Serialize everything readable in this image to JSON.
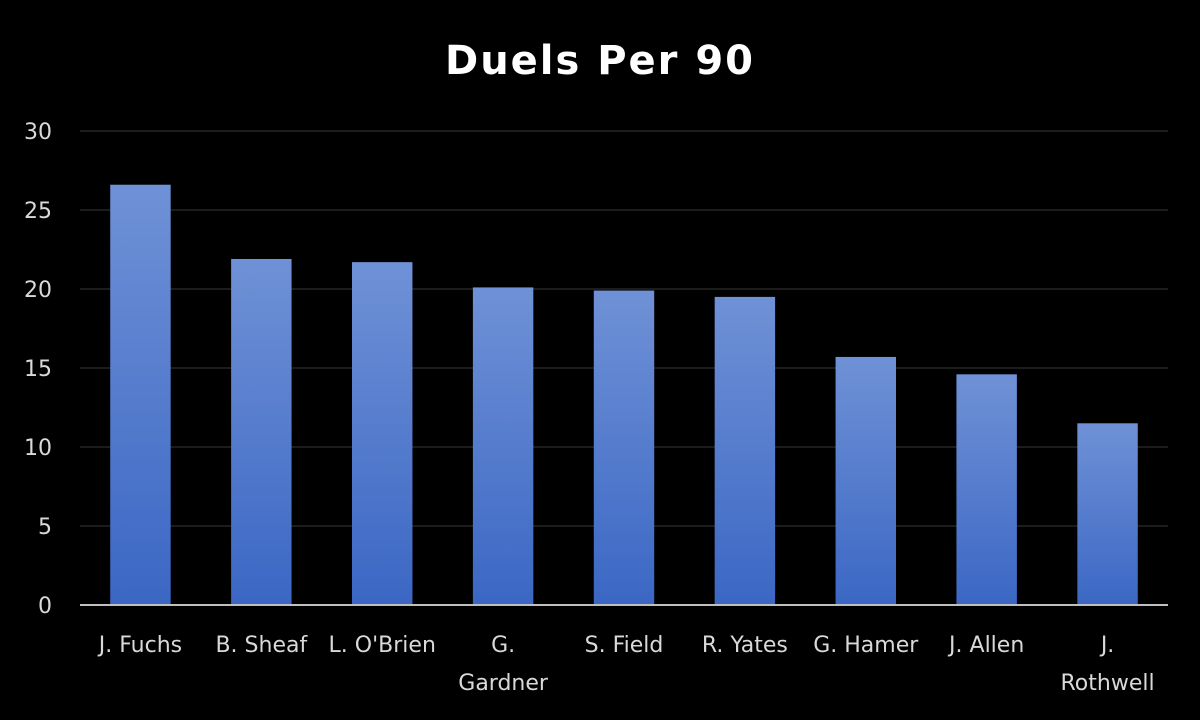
{
  "chart_data": {
    "type": "bar",
    "title": "Duels Per 90",
    "xlabel": "",
    "ylabel": "",
    "categories": [
      "J. Fuchs",
      "B. Sheaf",
      "L. O'Brien",
      "G. Gardner",
      "S. Field",
      "R. Yates",
      "G. Hamer",
      "J. Allen",
      "J. Rothwell"
    ],
    "category_lines": [
      [
        "J. Fuchs"
      ],
      [
        "B. Sheaf"
      ],
      [
        "L. O'Brien"
      ],
      [
        "G.",
        "Gardner"
      ],
      [
        "S. Field"
      ],
      [
        "R. Yates"
      ],
      [
        "G. Hamer"
      ],
      [
        "J. Allen"
      ],
      [
        "J.",
        "Rothwell"
      ]
    ],
    "values": [
      26.6,
      21.9,
      21.7,
      20.1,
      19.9,
      19.5,
      15.7,
      14.6,
      11.5
    ],
    "ylim": [
      0,
      30
    ],
    "yticks": [
      0,
      5,
      10,
      15,
      20,
      25,
      30
    ],
    "grid": true,
    "legend": "none",
    "colors": {
      "background": "#000000",
      "bar_top": "#6f91d6",
      "bar_bottom": "#3b67c4",
      "grid": "#262626",
      "axis": "#bfbfbf",
      "text": "#d9d9d9",
      "title": "#ffffff"
    }
  }
}
